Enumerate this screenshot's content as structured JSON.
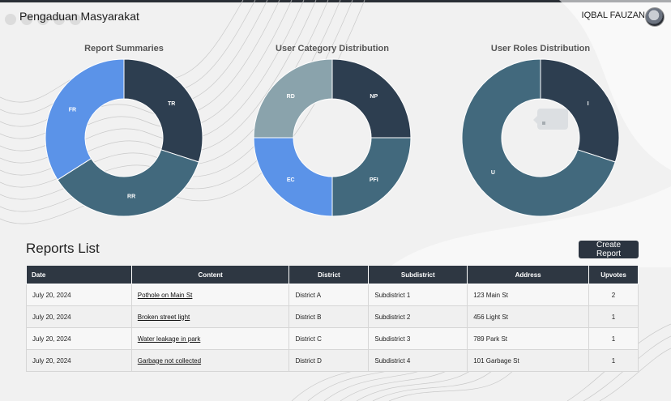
{
  "app": {
    "title": "Pengaduan Masyarakat",
    "user_name": "IQBAL FAUZAN"
  },
  "colors": {
    "dark": "#2d3e50",
    "mid": "#42697d",
    "blue": "#5b93e8",
    "grey": "#8aa3ac",
    "header": "#2e3742"
  },
  "charts": {
    "summaries_title": "Report Summaries",
    "category_title": "User Category Distribution",
    "roles_title": "User Roles Distribution"
  },
  "chart_data": [
    {
      "type": "pie",
      "title": "Report Summaries",
      "labels": [
        "TR",
        "RR",
        "FR"
      ],
      "values": [
        30,
        36,
        34
      ],
      "colors": [
        "#2d3e50",
        "#42697d",
        "#5b93e8"
      ]
    },
    {
      "type": "pie",
      "title": "User Category Distribution",
      "labels": [
        "NP",
        "PFI",
        "EC",
        "RD"
      ],
      "values": [
        25,
        25,
        25,
        25
      ],
      "colors": [
        "#2d3e50",
        "#42697d",
        "#5b93e8",
        "#8aa3ac"
      ]
    },
    {
      "type": "pie",
      "title": "User Roles Distribution",
      "labels": [
        "I",
        "U"
      ],
      "values": [
        30,
        70
      ],
      "colors": [
        "#2d3e50",
        "#42697d"
      ]
    }
  ],
  "reports": {
    "title": "Reports List",
    "create_label": "Create Report",
    "columns": [
      "Date",
      "Content",
      "District",
      "Subdistrict",
      "Address",
      "Upvotes"
    ],
    "rows": [
      [
        "July 20, 2024",
        "Pothole on Main St",
        "District A",
        "Subdistrict 1",
        "123 Main St",
        "2"
      ],
      [
        "July 20, 2024",
        "Broken street light",
        "District B",
        "Subdistrict 2",
        "456 Light St",
        "1"
      ],
      [
        "July 20, 2024",
        "Water leakage in park",
        "District C",
        "Subdistrict 3",
        "789 Park St",
        "1"
      ],
      [
        "July 20, 2024",
        "Garbage not collected",
        "District D",
        "Subdistrict 4",
        "101 Garbage St",
        "1"
      ]
    ]
  }
}
